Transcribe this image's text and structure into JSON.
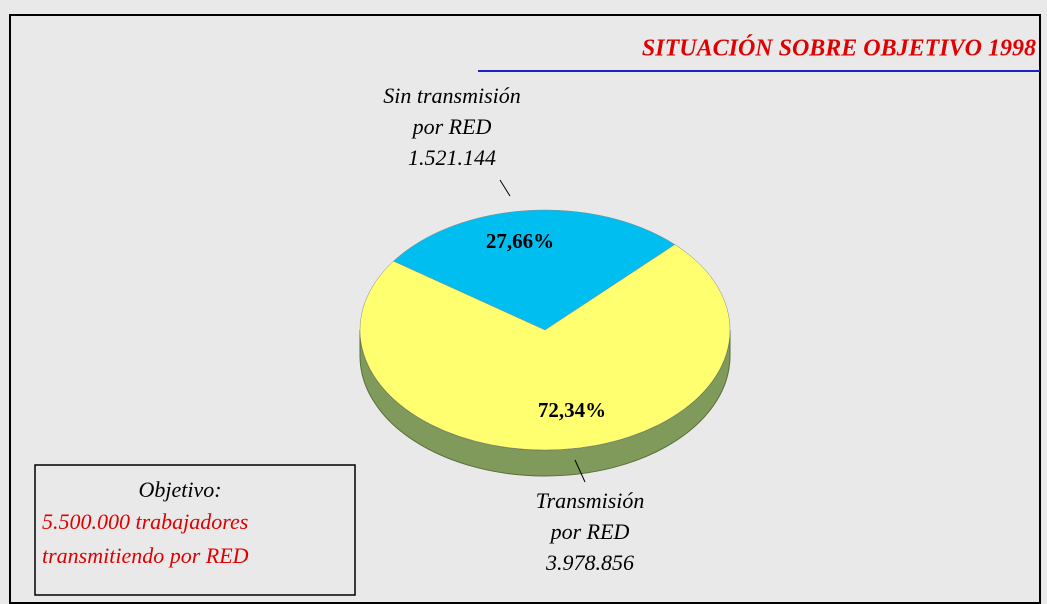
{
  "chart_data": {
    "type": "pie",
    "title": "SITUACIÓN SOBRE OBJETIVO 1998",
    "categories": [
      [
        "Sin transmisión",
        "por RED"
      ],
      [
        "Transmisión",
        "por RED"
      ]
    ],
    "count_labels": [
      "1.521.144",
      "3.978.856"
    ],
    "values": [
      27.66,
      72.34
    ],
    "value_labels": [
      "27,66%",
      "72,34%"
    ],
    "colors": [
      "#00bff0",
      "#ffff70"
    ],
    "side_color": "#7f9a5a",
    "annotation": {
      "heading": "Objetivo:",
      "lines": [
        "5.500.000 trabajadores",
        "transmitiendo por RED"
      ],
      "color": "#e00000"
    }
  }
}
